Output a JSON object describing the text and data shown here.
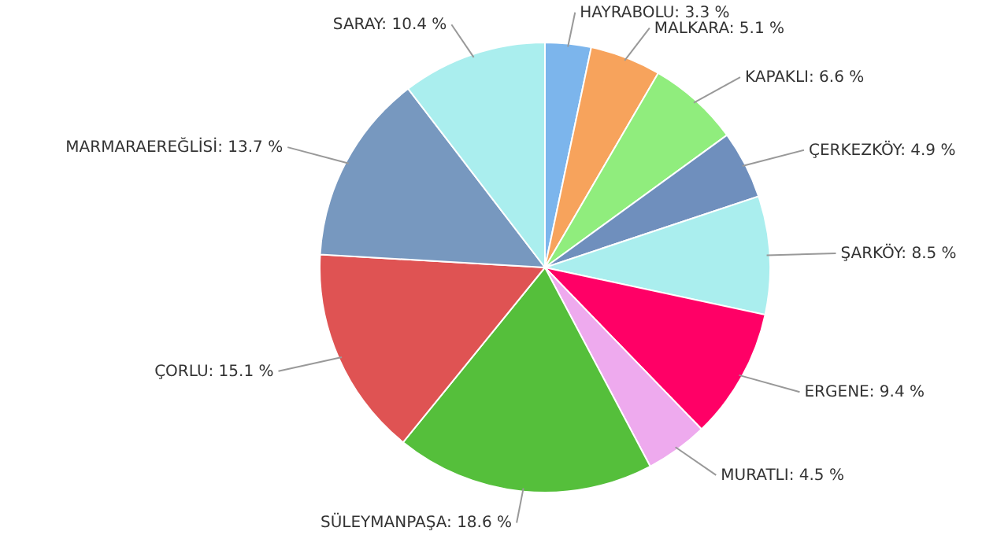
{
  "chart_data": {
    "type": "pie",
    "categories": [
      "HAYRABOLU",
      "MALKARA",
      "KAPAKLI",
      "ÇERKEZKÖY",
      "ŞARKÖY",
      "ERGENE",
      "MURATLI",
      "SÜLEYMANPAŞA",
      "ÇORLU",
      "MARMARAEREĞLİSİ",
      "SARAY"
    ],
    "values": [
      3.3,
      5.1,
      6.6,
      4.9,
      8.5,
      9.4,
      4.5,
      18.6,
      15.1,
      13.7,
      10.4
    ],
    "value_labels": [
      "3.3 %",
      "5.1 %",
      "6.6 %",
      "4.9 %",
      "8.5 %",
      "9.4 %",
      "4.5 %",
      "18.6 %",
      "15.1 %",
      "13.7 %",
      "10.4 %"
    ],
    "colors": [
      "#7cb5ec",
      "#f7a35c",
      "#90ed7d",
      "#6f8fbd",
      "#aaeeee",
      "#ff0066",
      "#eeaaee",
      "#55bf3b",
      "#df5353",
      "#7798bf",
      "#aaeeee"
    ]
  }
}
